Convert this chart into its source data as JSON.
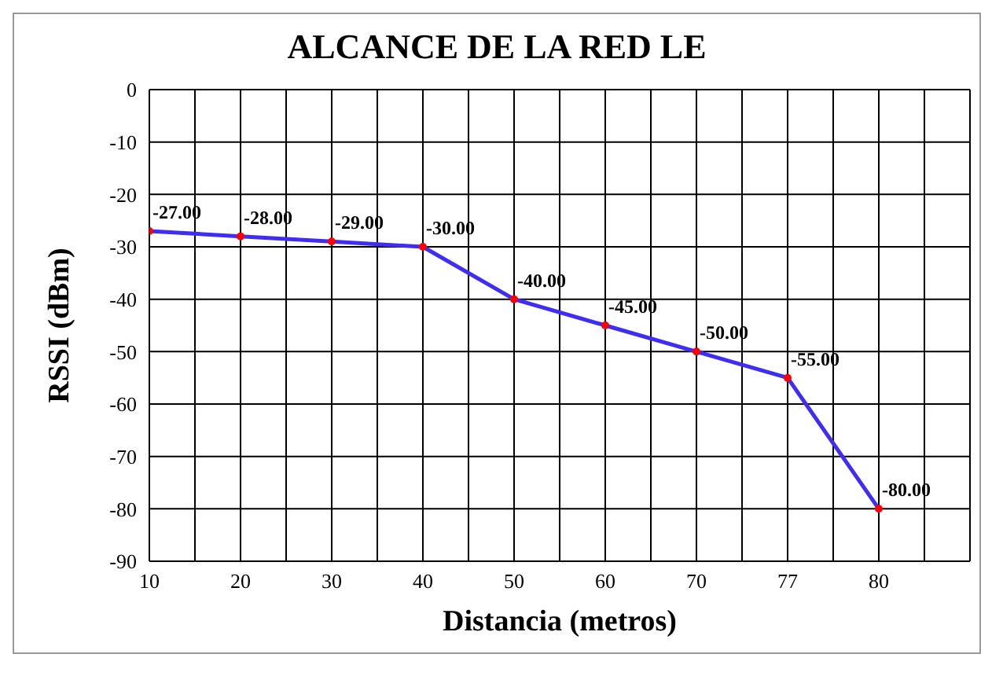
{
  "chart_data": {
    "type": "line",
    "title": "ALCANCE DE LA RED LE",
    "xlabel": "Distancia (metros)",
    "ylabel": "RSSI (dBm)",
    "categories": [
      "10",
      "20",
      "30",
      "40",
      "50",
      "60",
      "70",
      "77",
      "80"
    ],
    "series": [
      {
        "color": "#3f2cf5",
        "colors": [
          "#ff0000",
          "#ff0000",
          "#ff0000",
          "#ff0000",
          "#ff0000",
          "#ff0000",
          "#ff0000",
          "#ff0000",
          "#ff0000"
        ],
        "values": [
          -27,
          -28,
          -29,
          -30,
          -40,
          -45,
          -50,
          -55,
          -80
        ],
        "value_labels": [
          "-27.00",
          "-28.00",
          "-29.00",
          "-30.00",
          "-40.00",
          "-45.00",
          "-50.00",
          "-55.00",
          "-80.00"
        ]
      }
    ],
    "ylim": [
      -90,
      0
    ],
    "yticks": [
      -90,
      -80,
      -70,
      -60,
      -50,
      -40,
      -30,
      -20,
      -10,
      0
    ],
    "grid": true,
    "marker": "circle",
    "line_style": "solid",
    "legend": false
  }
}
